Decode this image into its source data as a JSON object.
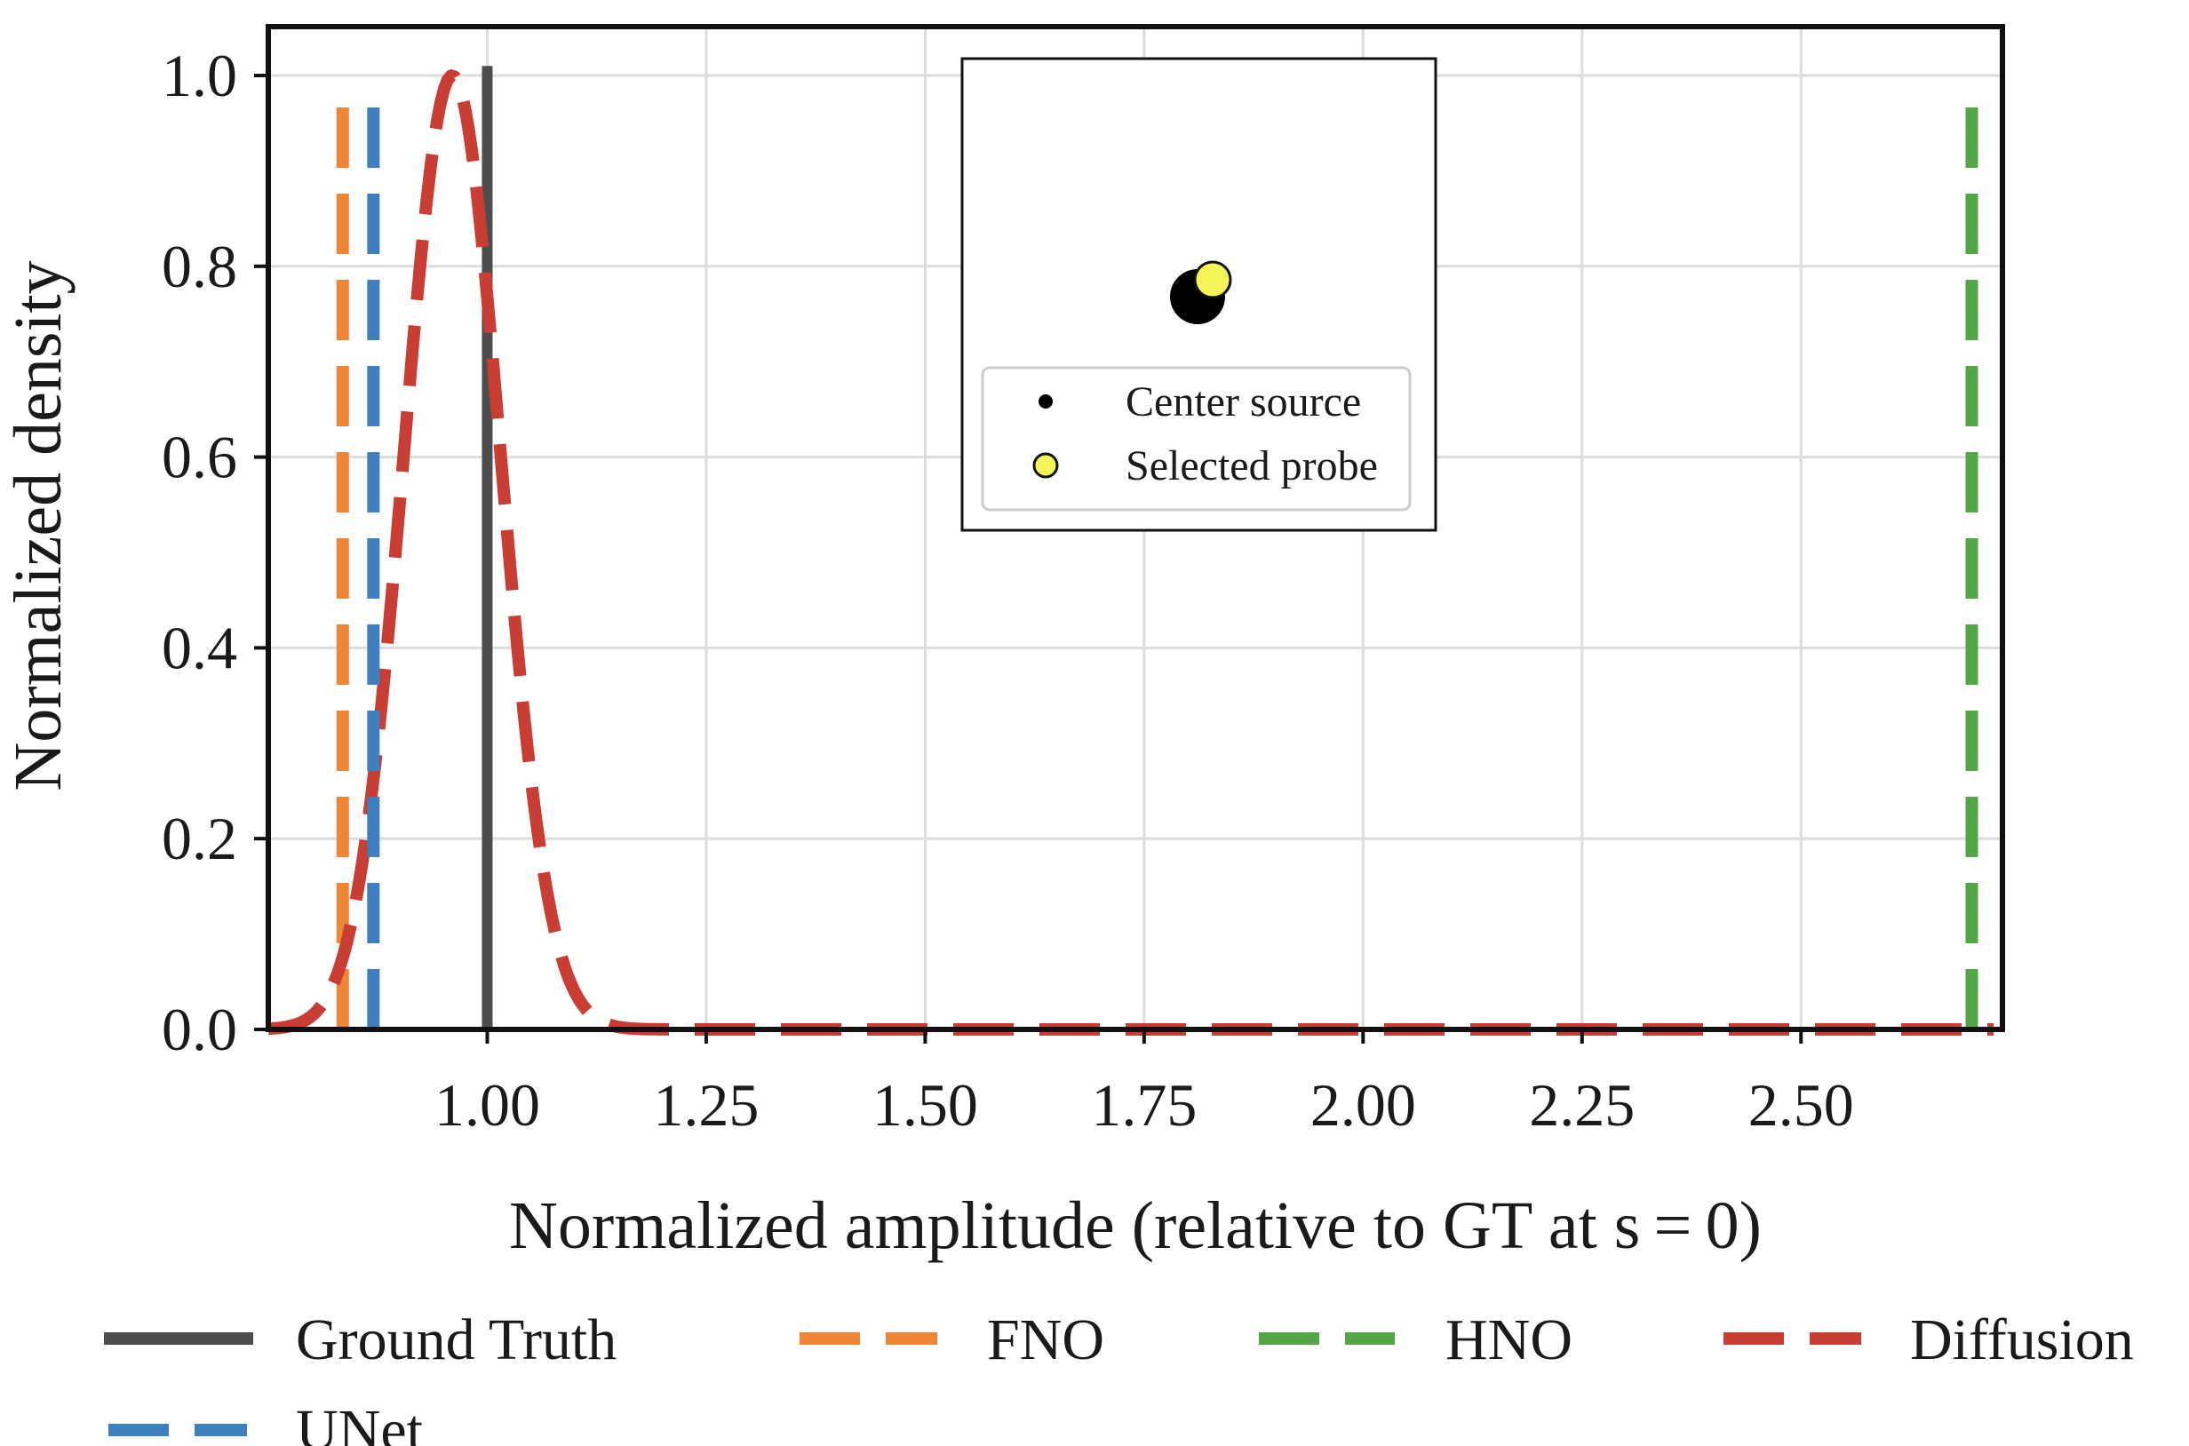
{
  "chart_data": {
    "type": "line",
    "xlabel": "Normalized amplitude (relative to GT at s = 0)",
    "ylabel": "Normalized density",
    "xlim": [
      0.75,
      2.73
    ],
    "ylim": [
      0,
      1.05
    ],
    "xticks": [
      1.0,
      1.25,
      1.5,
      1.75,
      2.0,
      2.25,
      2.5
    ],
    "xtick_labels": [
      "1.00",
      "1.25",
      "1.50",
      "1.75",
      "2.00",
      "2.25",
      "2.50"
    ],
    "yticks": [
      0.0,
      0.2,
      0.4,
      0.6,
      0.8,
      1.0
    ],
    "ytick_labels": [
      "0.0",
      "0.2",
      "0.4",
      "0.6",
      "0.8",
      "1.0"
    ],
    "grid": true,
    "series": [
      {
        "name": "Ground Truth",
        "kind": "vline",
        "x": 1.0,
        "ymax": 1.01,
        "color": "#4d4d4d",
        "style": "solid"
      },
      {
        "name": "FNO",
        "kind": "vline",
        "x": 0.835,
        "ymax": 0.97,
        "color": "#ef8636",
        "style": "dashed"
      },
      {
        "name": "HNO",
        "kind": "vline",
        "x": 2.695,
        "ymax": 0.97,
        "color": "#53a548",
        "style": "dashed"
      },
      {
        "name": "Diffusion",
        "kind": "gaussian",
        "mean": 0.96,
        "sd": 0.055,
        "peak": 1.0,
        "x_range": [
          0.75,
          2.72
        ],
        "color": "#c83d34",
        "style": "dashed"
      },
      {
        "name": "UNet",
        "kind": "vline",
        "x": 0.87,
        "ymax": 0.97,
        "color": "#3f7fbf",
        "style": "dashed"
      }
    ],
    "legend": {
      "placement": "bottom",
      "entries": [
        "Ground Truth",
        "FNO",
        "HNO",
        "Diffusion",
        "UNet"
      ]
    },
    "inset": {
      "placement": "top-center",
      "entries": [
        {
          "label": "Center source",
          "color": "#000000"
        },
        {
          "label": "Selected probe",
          "color": "#f5f55a"
        }
      ]
    }
  }
}
